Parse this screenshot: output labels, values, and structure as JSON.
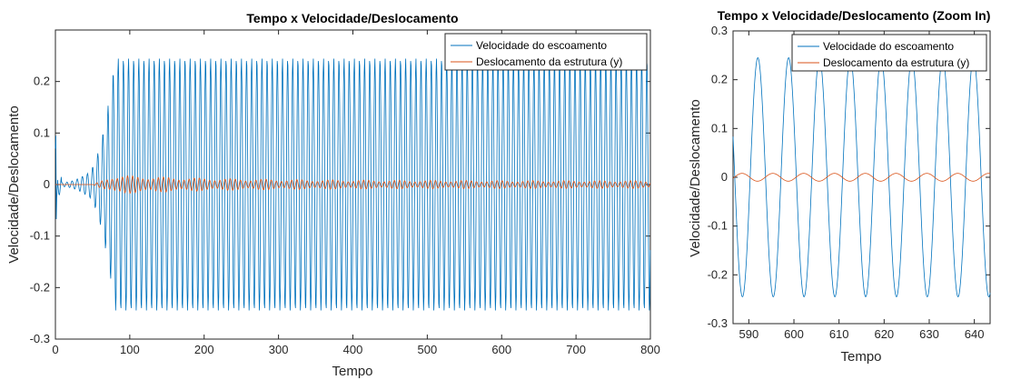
{
  "chart_data": [
    {
      "type": "line",
      "title": "Tempo x Velocidade/Deslocamento",
      "xlabel": "Tempo",
      "ylabel": "Velocidade/Deslocamento",
      "xlim": [
        0,
        800
      ],
      "ylim": [
        -0.3,
        0.3
      ],
      "xticks": [
        "0",
        "100",
        "200",
        "300",
        "400",
        "500",
        "600",
        "700",
        "800"
      ],
      "yticks": [
        "-0.3",
        "-0.2",
        "-0.1",
        "0",
        "0.1",
        "0.2"
      ],
      "grid": false,
      "legend_position": "top-right",
      "series": [
        {
          "name": "Velocidade do escoamento",
          "color": "#0072BD",
          "description": "oscillation growing from ~0 to amplitude ~0.245 by t~75, period ~6.9",
          "amplitude_steady": 0.245,
          "period": 6.9
        },
        {
          "name": "Deslocamento da estrutura (y)",
          "color": "#D95319",
          "description": "small oscillation amplitude ~0.01-0.015, decays to ~0.006",
          "amplitude_peak": 0.015,
          "amplitude_steady": 0.006,
          "period": 6.9
        }
      ]
    },
    {
      "type": "line",
      "title": "Tempo x Velocidade/Deslocamento (Zoom In)",
      "xlabel": "Tempo",
      "ylabel": "Velocidade/Deslocamento",
      "xlim": [
        586.5,
        643.5
      ],
      "ylim": [
        -0.3,
        0.3
      ],
      "xticks": [
        "590",
        "600",
        "610",
        "620",
        "630",
        "640"
      ],
      "yticks": [
        "-0.3",
        "-0.2",
        "-0.1",
        "0",
        "0.1",
        "0.2",
        "0.3"
      ],
      "grid": false,
      "legend_position": "top-right",
      "series": [
        {
          "name": "Velocidade do escoamento",
          "color": "#0072BD",
          "amplitude": 0.245,
          "period": 6.83,
          "phase_peak_at": 592.0
        },
        {
          "name": "Deslocamento da estrutura (y)",
          "color": "#D95319",
          "amplitude": 0.008,
          "period": 6.83,
          "phase_peak_at": 588.5
        }
      ]
    }
  ]
}
